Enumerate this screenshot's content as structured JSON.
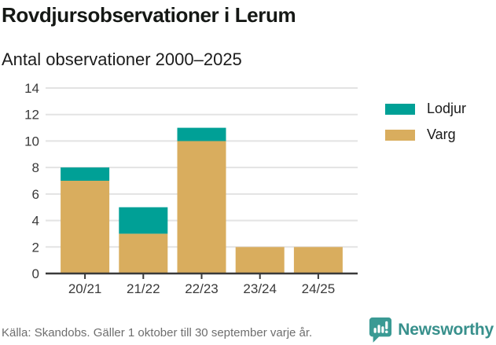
{
  "header": {
    "title": "Rovdjursobservationer i Lerum",
    "subtitle": "Antal observationer 2000–2025"
  },
  "chart_data": {
    "type": "bar",
    "stacked": true,
    "title": "Rovdjursobservationer i Lerum",
    "subtitle": "Antal observationer 2000–2025",
    "categories": [
      "20/21",
      "21/22",
      "22/23",
      "23/24",
      "24/25"
    ],
    "series": [
      {
        "name": "Varg",
        "color": "#d9ad5e",
        "values": [
          7,
          3,
          10,
          2,
          2
        ]
      },
      {
        "name": "Lodjur",
        "color": "#00a096",
        "values": [
          1,
          2,
          1,
          0,
          0
        ]
      }
    ],
    "totals": [
      8,
      5,
      11,
      2,
      2
    ],
    "xlabel": "",
    "ylabel": "",
    "ylim": [
      0,
      14
    ],
    "ytick_step": 2,
    "yticks": [
      0,
      2,
      4,
      6,
      8,
      10,
      12,
      14
    ],
    "grid": true,
    "grid_color": "#e3e3e3",
    "axis_color": "#3a3a3a",
    "tick_label_color": "#3a3a3a",
    "legend_position": "right"
  },
  "legend": {
    "items": [
      {
        "label": "Lodjur",
        "color": "#00a096"
      },
      {
        "label": "Varg",
        "color": "#d9ad5e"
      }
    ]
  },
  "footer": {
    "source": "Källa: Skandobs. Gäller 1 oktober till 30 september varje år.",
    "brand": "Newsworthy",
    "brand_color": "#38908c",
    "logo_color": "#3a9a94"
  }
}
